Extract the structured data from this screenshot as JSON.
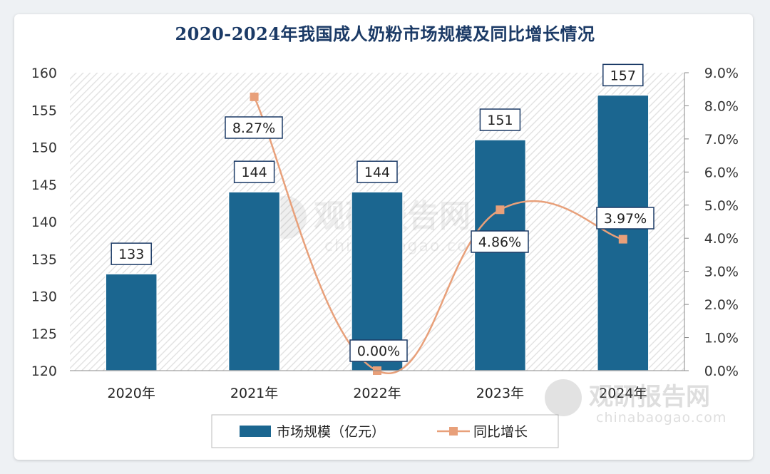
{
  "chart_data": {
    "type": "bar+line",
    "title": "2020-2024年我国成人奶粉市场规模及同比增长情况",
    "categories": [
      "2020年",
      "2021年",
      "2022年",
      "2023年",
      "2024年"
    ],
    "series": [
      {
        "name": "市场规模（亿元）",
        "type": "bar",
        "axis": "left",
        "values": [
          133,
          144,
          144,
          151,
          157
        ],
        "labels": [
          "133",
          "144",
          "144",
          "151",
          "157"
        ],
        "color": "#1b6690"
      },
      {
        "name": "同比增长",
        "type": "line",
        "axis": "right",
        "values": [
          null,
          8.27,
          0.0,
          4.86,
          3.97
        ],
        "labels": [
          "",
          "8.27%",
          "0.00%",
          "4.86%",
          "3.97%"
        ],
        "color": "#e8a07a"
      }
    ],
    "y_left": {
      "range": [
        120,
        160
      ],
      "ticks": [
        120,
        125,
        130,
        135,
        140,
        145,
        150,
        155,
        160
      ],
      "tick_labels": [
        "120",
        "125",
        "130",
        "135",
        "140",
        "145",
        "150",
        "155",
        "160"
      ]
    },
    "y_right": {
      "range": [
        0,
        9
      ],
      "ticks": [
        0,
        1,
        2,
        3,
        4,
        5,
        6,
        7,
        8,
        9
      ],
      "tick_labels": [
        "0.0%",
        "1.0%",
        "2.0%",
        "3.0%",
        "4.0%",
        "5.0%",
        "6.0%",
        "7.0%",
        "8.0%",
        "9.0%"
      ]
    },
    "legend": {
      "position": "bottom",
      "items": [
        "市场规模（亿元）",
        "同比增长"
      ]
    }
  },
  "watermark": {
    "brand": "观研报告网",
    "domain": "chinabaogao.com"
  }
}
